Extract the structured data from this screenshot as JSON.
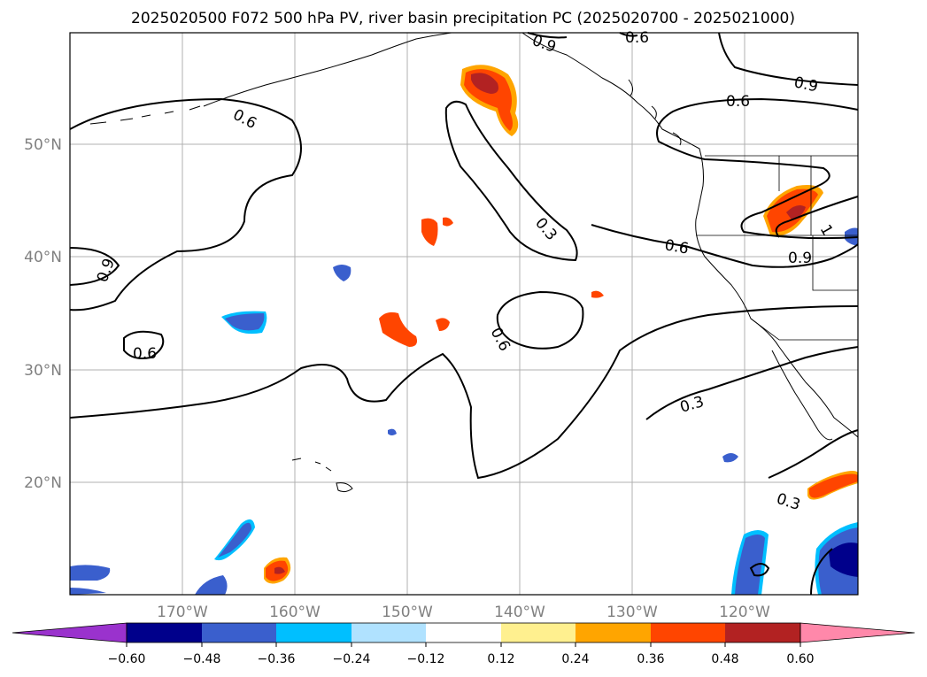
{
  "title": "2025020500 F072 500 hPa PV, river basin precipitation PC (2025020700 - 2025021000)",
  "lon_labels": [
    "170°W",
    "160°W",
    "150°W",
    "140°W",
    "130°W",
    "120°W"
  ],
  "lat_labels": [
    "50°N",
    "40°N",
    "30°N",
    "20°N"
  ],
  "contour_labels": [
    "0.6",
    "0.9",
    "0.6",
    "0.9",
    "0.6",
    "0.3",
    "0.6",
    "0.9",
    "0.6",
    "0.6",
    "0.9",
    "0.3",
    "0.3",
    "1"
  ],
  "colorbar": {
    "ticks": [
      "−0.60",
      "−0.48",
      "−0.36",
      "−0.24",
      "−0.12",
      "0.12",
      "0.24",
      "0.36",
      "0.48",
      "0.60"
    ],
    "colors": [
      "#9a32cd",
      "#00008b",
      "#3a5fcd",
      "#00bfff",
      "#b0e2ff",
      "#ffffff",
      "#fff08f",
      "#ffa500",
      "#ff4500",
      "#b22222",
      "#ff88aa"
    ]
  }
}
